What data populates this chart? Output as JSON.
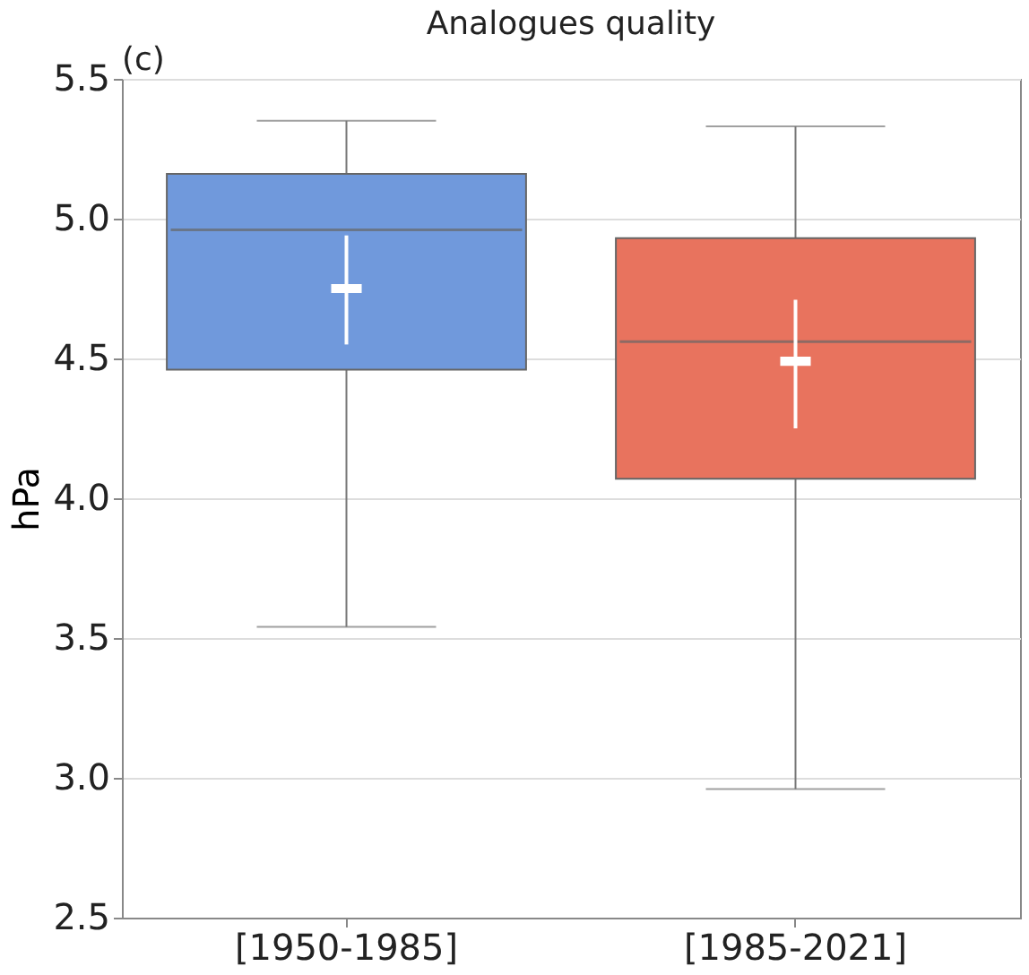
{
  "chart_data": {
    "type": "box",
    "title": "Analogues quality",
    "ylabel": "hPa",
    "annotations": [
      "(c)"
    ],
    "categories": [
      "[1950-1985]",
      "[1985-2021]"
    ],
    "colors": [
      "#7099dc",
      "#e8735e"
    ],
    "boxes": [
      {
        "low": 3.54,
        "q1": 4.46,
        "median": 4.96,
        "q3": 5.16,
        "high": 5.35
      },
      {
        "low": 2.96,
        "q1": 4.07,
        "median": 4.56,
        "q3": 4.93,
        "high": 5.33
      }
    ],
    "series": [
      {
        "type": "scatter",
        "color": "#ffffff",
        "marker": "square",
        "values": [
          4.75,
          4.49
        ],
        "errors": [
          [
            4.55,
            4.94
          ],
          [
            4.25,
            4.71
          ]
        ]
      }
    ],
    "ylim": [
      2.5,
      5.5
    ],
    "yticks": [
      2.5,
      {
        "value": 3,
        "label": "3.0"
      },
      3.5,
      {
        "value": 4,
        "label": "4.0"
      },
      4.5,
      {
        "value": 5,
        "label": "5.0"
      },
      5.5
    ],
    "grid": "y",
    "legend": false
  }
}
